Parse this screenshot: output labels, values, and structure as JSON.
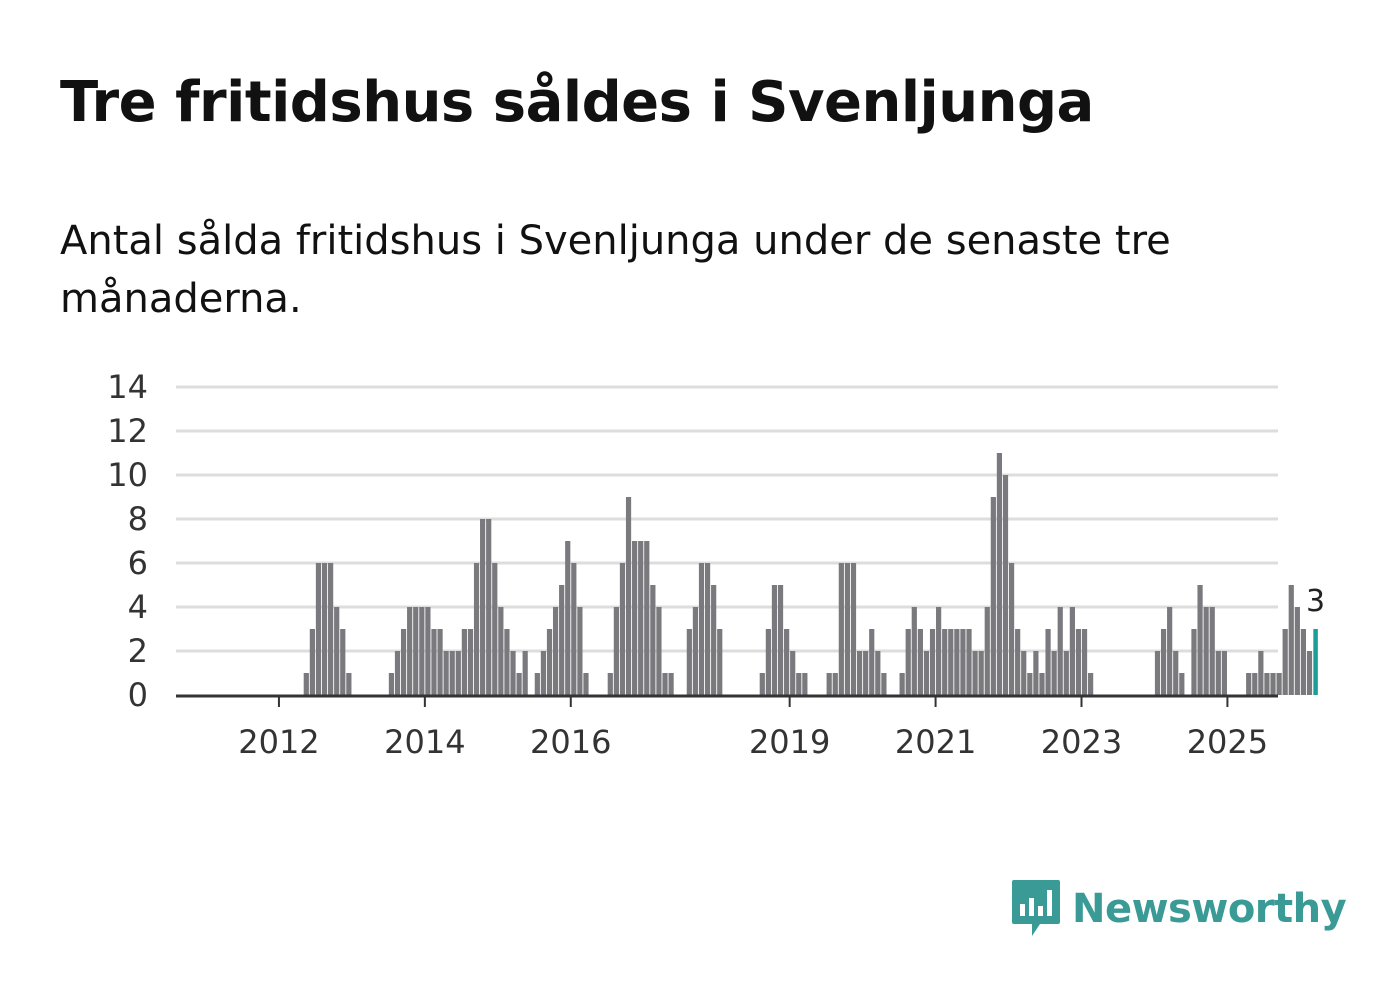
{
  "header": {
    "title": "Tre fritidshus såldes i Svenljunga",
    "subtitle": "Antal sålda fritidshus i Svenljunga under de senaste tre månaderna."
  },
  "brand": {
    "name": "Newsworthy",
    "color": "#3a9a96"
  },
  "colors": {
    "bar": "#7a797e",
    "highlight": "#1a9e97",
    "grid": "#dddddd",
    "axis": "#333333"
  },
  "chart_data": {
    "type": "bar",
    "title": "Tre fritidshus såldes i Svenljunga",
    "xlabel": "",
    "ylabel": "",
    "ylim": [
      0,
      14
    ],
    "yticks": [
      0,
      2,
      4,
      6,
      8,
      10,
      12,
      14
    ],
    "x_start": "2011-07",
    "frequency": "monthly",
    "xticks": [
      {
        "label": "2012",
        "date": "2012-01"
      },
      {
        "label": "2014",
        "date": "2014-01"
      },
      {
        "label": "2016",
        "date": "2016-01"
      },
      {
        "label": "2019",
        "date": "2019-01"
      },
      {
        "label": "2021",
        "date": "2021-01"
      },
      {
        "label": "2023",
        "date": "2023-01"
      },
      {
        "label": "2025",
        "date": "2025-01"
      }
    ],
    "values": [
      0,
      0,
      0,
      0,
      0,
      0,
      0,
      0,
      0,
      0,
      1,
      3,
      6,
      6,
      6,
      4,
      3,
      1,
      0,
      0,
      0,
      0,
      0,
      0,
      1,
      2,
      3,
      4,
      4,
      4,
      4,
      3,
      3,
      2,
      2,
      2,
      3,
      3,
      6,
      8,
      8,
      6,
      4,
      3,
      2,
      1,
      2,
      0,
      1,
      2,
      3,
      4,
      5,
      7,
      6,
      4,
      1,
      0,
      0,
      0,
      1,
      4,
      6,
      9,
      7,
      7,
      7,
      5,
      4,
      1,
      1,
      0,
      0,
      3,
      4,
      6,
      6,
      5,
      3,
      0,
      0,
      0,
      0,
      0,
      0,
      1,
      3,
      5,
      5,
      3,
      2,
      1,
      1,
      0,
      0,
      0,
      1,
      1,
      6,
      6,
      6,
      2,
      2,
      3,
      2,
      1,
      0,
      0,
      1,
      3,
      4,
      3,
      2,
      3,
      4,
      3,
      3,
      3,
      3,
      3,
      2,
      2,
      4,
      9,
      11,
      10,
      6,
      3,
      2,
      1,
      2,
      1,
      3,
      2,
      4,
      2,
      4,
      3,
      3,
      1,
      0,
      0,
      0,
      0,
      0,
      0,
      0,
      0,
      0,
      0,
      2,
      3,
      4,
      2,
      1,
      0,
      3,
      5,
      4,
      4,
      2,
      2,
      0,
      0,
      0,
      1,
      1,
      2,
      1,
      1,
      1,
      3,
      5,
      4,
      3,
      2,
      3
    ],
    "highlight_last": true,
    "annotation": "3"
  }
}
